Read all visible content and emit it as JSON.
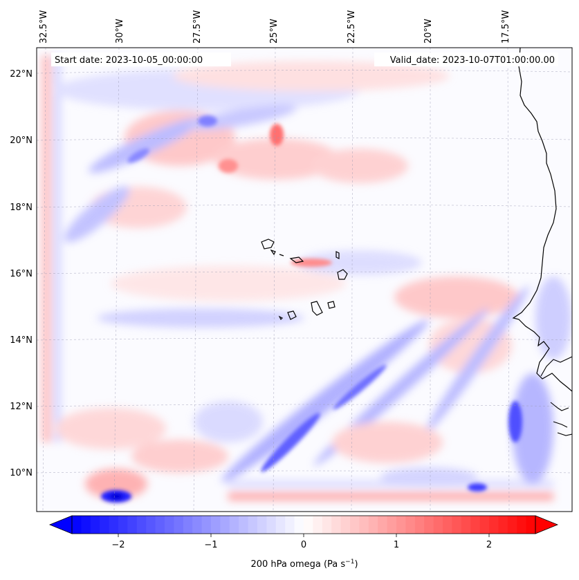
{
  "map": {
    "start_label": "Start date: 2023-10-05_00:00:00",
    "valid_label": "Valid_date: 2023-10-07T01:00:00.00",
    "lon_labels": [
      "32.5°W",
      "30°W",
      "27.5°W",
      "25°W",
      "22.5°W",
      "20°W",
      "17.5°W"
    ],
    "lat_labels": [
      "22°N",
      "20°N",
      "18°N",
      "16°N",
      "14°N",
      "12°N",
      "10°N"
    ],
    "field_colors": {
      "positive": "#ff0000",
      "negative": "#0000ff",
      "neutral": "#ffffff"
    }
  },
  "colorbar": {
    "tick_labels": [
      "−2",
      "−1",
      "0",
      "1",
      "2"
    ],
    "tick_values": [
      -2,
      -1,
      0,
      1,
      2
    ],
    "range": [
      -2.5,
      2.5
    ],
    "label_main": "200 hPa omega (Pa s",
    "label_exp": "−1",
    "label_close": ")"
  }
}
